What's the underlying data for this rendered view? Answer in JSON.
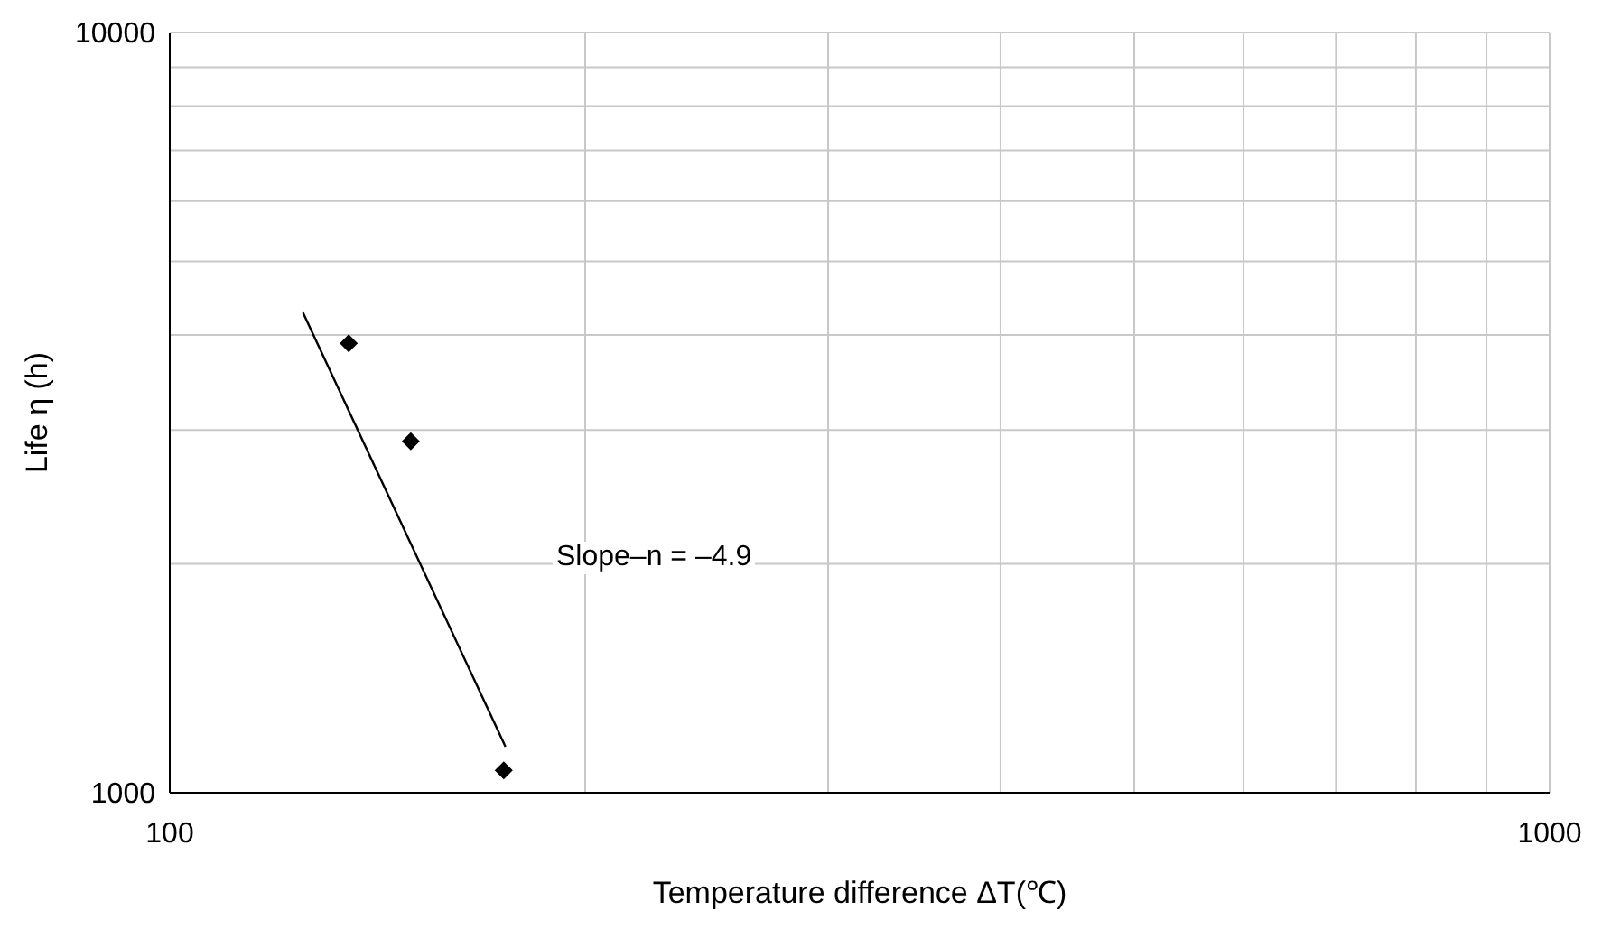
{
  "chart_data": {
    "type": "scatter",
    "xlabel": "Temperature difference ΔT(℃)",
    "ylabel": "Life η (h)",
    "log": "xy",
    "grid": true,
    "marker": "diamond",
    "xlim": [
      100,
      1000
    ],
    "ylim": [
      1000,
      10000
    ],
    "xticks": [
      100,
      {
        "value": 200,
        "label": null
      },
      {
        "value": 300,
        "label": null
      },
      {
        "value": 400,
        "label": null
      },
      {
        "value": 500,
        "label": null
      },
      {
        "value": 600,
        "label": null
      },
      {
        "value": 700,
        "label": null
      },
      {
        "value": 800,
        "label": null
      },
      {
        "value": 900,
        "label": null
      },
      1000
    ],
    "yticks": [
      1000,
      {
        "value": 2000,
        "label": null
      },
      {
        "value": 3000,
        "label": null
      },
      {
        "value": 4000,
        "label": null
      },
      {
        "value": 5000,
        "label": null
      },
      {
        "value": 6000,
        "label": null
      },
      {
        "value": 7000,
        "label": null
      },
      {
        "value": 8000,
        "label": null
      },
      {
        "value": 9000,
        "label": null
      },
      10000
    ],
    "series": [
      {
        "color": "#000000",
        "x": [
          134.8,
          149.5,
          174.6
        ],
        "values": [
          3900,
          2900,
          1070
        ]
      },
      {
        "type": "line",
        "color": "#000000",
        "marker": "none",
        "line_style": "solid",
        "x": [
          124.9,
          175.1
        ],
        "values": [
          4280,
          1150
        ]
      }
    ],
    "annotations": [
      "Slope–n = –4.9"
    ]
  }
}
